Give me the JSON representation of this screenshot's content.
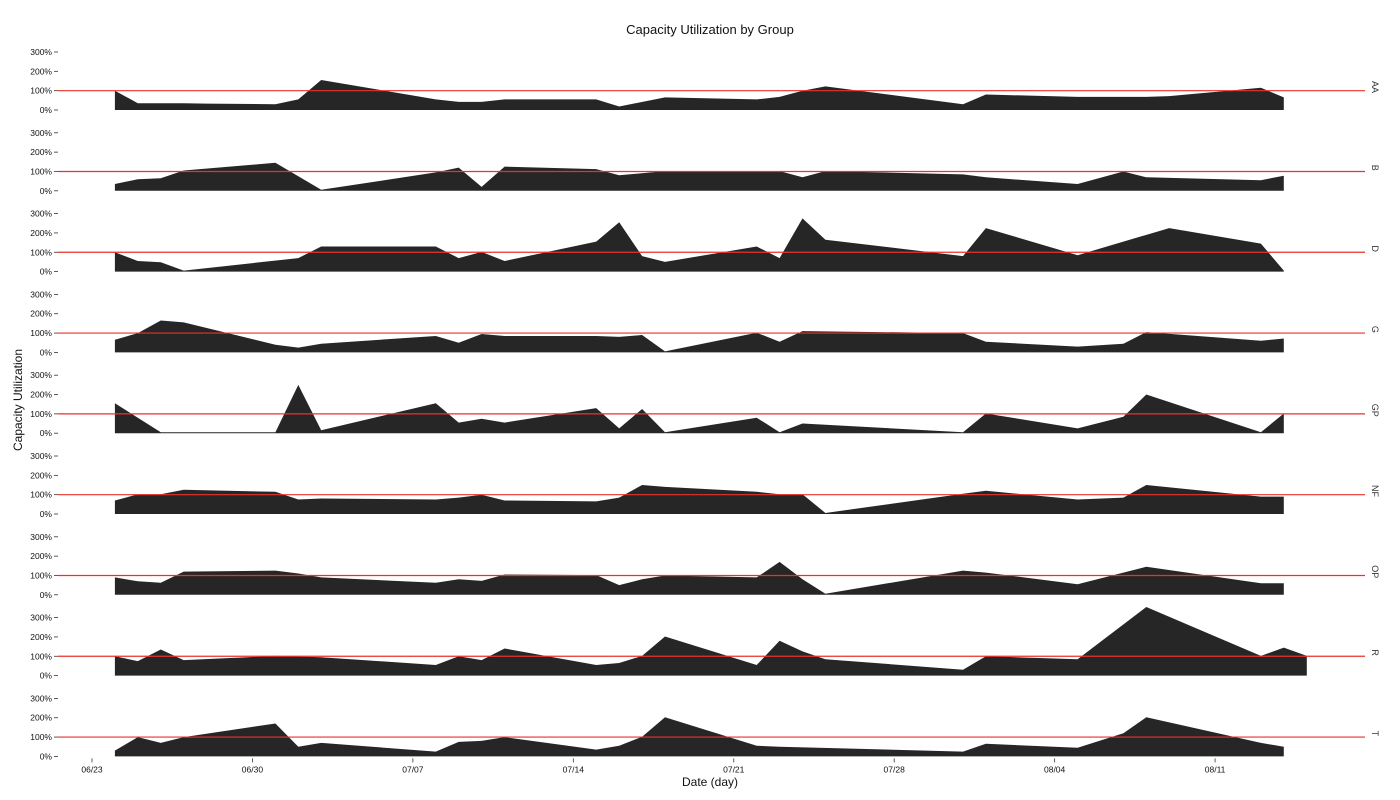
{
  "chart_data": {
    "type": "area",
    "title": "Capacity Utilization by Group",
    "xlabel": "Date (day)",
    "ylabel": "Capacity Utilization",
    "ylim": [
      0,
      3
    ],
    "yticks": [
      "0%",
      "100%",
      "200%",
      "300%"
    ],
    "xticks": [
      "06/23",
      "06/30",
      "07/07",
      "07/14",
      "07/21",
      "07/28",
      "08/04",
      "08/11"
    ],
    "reference_line": 1.0,
    "reference_color": "#e8332b",
    "fill_color": "#262626",
    "grid": false,
    "series": [
      {
        "name": "AA",
        "points": [
          [
            "06/24",
            1.0
          ],
          [
            "06/25",
            0.35
          ],
          [
            "06/26",
            0.35
          ],
          [
            "06/27",
            0.35
          ],
          [
            "06/28",
            0.33
          ],
          [
            "07/01",
            0.3
          ],
          [
            "07/02",
            0.55
          ],
          [
            "07/03",
            1.55
          ],
          [
            "07/08",
            0.55
          ],
          [
            "07/09",
            0.42
          ],
          [
            "07/10",
            0.42
          ],
          [
            "07/11",
            0.55
          ],
          [
            "07/15",
            0.55
          ],
          [
            "07/16",
            0.18
          ],
          [
            "07/18",
            0.65
          ],
          [
            "07/22",
            0.55
          ],
          [
            "07/23",
            0.68
          ],
          [
            "07/24",
            1.0
          ],
          [
            "07/25",
            1.22
          ],
          [
            "07/31",
            0.3
          ],
          [
            "08/01",
            0.8
          ],
          [
            "08/05",
            0.68
          ],
          [
            "08/08",
            0.68
          ],
          [
            "08/09",
            0.72
          ],
          [
            "08/13",
            1.15
          ],
          [
            "08/14",
            0.65
          ]
        ]
      },
      {
        "name": "B",
        "points": [
          [
            "06/24",
            0.35
          ],
          [
            "06/25",
            0.6
          ],
          [
            "06/26",
            0.65
          ],
          [
            "06/27",
            1.05
          ],
          [
            "07/01",
            1.45
          ],
          [
            "07/03",
            0.05
          ],
          [
            "07/08",
            0.95
          ],
          [
            "07/09",
            1.2
          ],
          [
            "07/10",
            0.2
          ],
          [
            "07/11",
            1.25
          ],
          [
            "07/15",
            1.12
          ],
          [
            "07/16",
            0.8
          ],
          [
            "07/18",
            1.02
          ],
          [
            "07/22",
            1.0
          ],
          [
            "07/23",
            1.02
          ],
          [
            "07/24",
            0.7
          ],
          [
            "07/25",
            1.02
          ],
          [
            "07/31",
            0.85
          ],
          [
            "08/01",
            0.7
          ],
          [
            "08/05",
            0.35
          ],
          [
            "08/07",
            1.0
          ],
          [
            "08/08",
            0.7
          ],
          [
            "08/13",
            0.55
          ],
          [
            "08/14",
            0.78
          ]
        ]
      },
      {
        "name": "D",
        "points": [
          [
            "06/24",
            1.0
          ],
          [
            "06/25",
            0.55
          ],
          [
            "06/26",
            0.48
          ],
          [
            "06/27",
            0.05
          ],
          [
            "07/02",
            0.7
          ],
          [
            "07/03",
            1.3
          ],
          [
            "07/08",
            1.3
          ],
          [
            "07/09",
            0.7
          ],
          [
            "07/10",
            1.02
          ],
          [
            "07/11",
            0.55
          ],
          [
            "07/15",
            1.55
          ],
          [
            "07/16",
            2.55
          ],
          [
            "07/17",
            0.8
          ],
          [
            "07/18",
            0.5
          ],
          [
            "07/22",
            1.3
          ],
          [
            "07/23",
            0.7
          ],
          [
            "07/24",
            2.75
          ],
          [
            "07/25",
            1.65
          ],
          [
            "07/31",
            0.8
          ],
          [
            "08/01",
            2.25
          ],
          [
            "08/05",
            0.85
          ],
          [
            "08/09",
            2.25
          ],
          [
            "08/13",
            1.45
          ],
          [
            "08/14",
            0.05
          ]
        ]
      },
      {
        "name": "G",
        "points": [
          [
            "06/24",
            0.65
          ],
          [
            "06/25",
            1.0
          ],
          [
            "06/26",
            1.65
          ],
          [
            "06/27",
            1.55
          ],
          [
            "07/01",
            0.4
          ],
          [
            "07/02",
            0.25
          ],
          [
            "07/03",
            0.45
          ],
          [
            "07/08",
            0.85
          ],
          [
            "07/09",
            0.5
          ],
          [
            "07/10",
            0.95
          ],
          [
            "07/11",
            0.85
          ],
          [
            "07/15",
            0.85
          ],
          [
            "07/16",
            0.8
          ],
          [
            "07/17",
            0.9
          ],
          [
            "07/18",
            0.05
          ],
          [
            "07/22",
            1.02
          ],
          [
            "07/23",
            0.55
          ],
          [
            "07/24",
            1.1
          ],
          [
            "07/31",
            1.0
          ],
          [
            "08/01",
            0.55
          ],
          [
            "08/05",
            0.3
          ],
          [
            "08/07",
            0.45
          ],
          [
            "08/08",
            1.05
          ],
          [
            "08/13",
            0.6
          ],
          [
            "08/14",
            0.72
          ]
        ]
      },
      {
        "name": "GP",
        "points": [
          [
            "06/24",
            1.55
          ],
          [
            "06/25",
            0.8
          ],
          [
            "06/26",
            0.05
          ],
          [
            "07/01",
            0.05
          ],
          [
            "07/02",
            2.5
          ],
          [
            "07/03",
            0.15
          ],
          [
            "07/08",
            1.55
          ],
          [
            "07/09",
            0.55
          ],
          [
            "07/10",
            0.75
          ],
          [
            "07/11",
            0.55
          ],
          [
            "07/15",
            1.3
          ],
          [
            "07/16",
            0.25
          ],
          [
            "07/17",
            1.25
          ],
          [
            "07/18",
            0.05
          ],
          [
            "07/22",
            0.8
          ],
          [
            "07/23",
            0.05
          ],
          [
            "07/24",
            0.5
          ],
          [
            "07/31",
            0.05
          ],
          [
            "08/01",
            1.02
          ],
          [
            "08/05",
            0.25
          ],
          [
            "08/07",
            0.85
          ],
          [
            "08/08",
            2.0
          ],
          [
            "08/13",
            0.05
          ],
          [
            "08/14",
            1.02
          ]
        ]
      },
      {
        "name": "NF",
        "points": [
          [
            "06/24",
            0.7
          ],
          [
            "06/25",
            1.02
          ],
          [
            "06/26",
            1.02
          ],
          [
            "06/27",
            1.25
          ],
          [
            "07/01",
            1.15
          ],
          [
            "07/02",
            0.75
          ],
          [
            "07/03",
            0.8
          ],
          [
            "07/08",
            0.75
          ],
          [
            "07/09",
            0.85
          ],
          [
            "07/10",
            1.0
          ],
          [
            "07/11",
            0.7
          ],
          [
            "07/15",
            0.65
          ],
          [
            "07/16",
            0.85
          ],
          [
            "07/17",
            1.5
          ],
          [
            "07/18",
            1.4
          ],
          [
            "07/22",
            1.15
          ],
          [
            "07/23",
            1.02
          ],
          [
            "07/24",
            1.02
          ],
          [
            "07/25",
            0.05
          ],
          [
            "07/31",
            1.05
          ],
          [
            "08/01",
            1.2
          ],
          [
            "08/05",
            0.75
          ],
          [
            "08/07",
            0.85
          ],
          [
            "08/08",
            1.5
          ],
          [
            "08/13",
            0.9
          ],
          [
            "08/14",
            0.9
          ]
        ]
      },
      {
        "name": "OP",
        "points": [
          [
            "06/24",
            0.9
          ],
          [
            "06/25",
            0.7
          ],
          [
            "06/26",
            0.62
          ],
          [
            "06/27",
            1.2
          ],
          [
            "07/01",
            1.25
          ],
          [
            "07/02",
            1.1
          ],
          [
            "07/03",
            0.9
          ],
          [
            "07/08",
            0.62
          ],
          [
            "07/09",
            0.8
          ],
          [
            "07/10",
            0.72
          ],
          [
            "07/11",
            1.05
          ],
          [
            "07/15",
            1.02
          ],
          [
            "07/16",
            0.5
          ],
          [
            "07/17",
            0.8
          ],
          [
            "07/18",
            1.0
          ],
          [
            "07/22",
            0.9
          ],
          [
            "07/23",
            1.7
          ],
          [
            "07/24",
            0.8
          ],
          [
            "07/25",
            0.05
          ],
          [
            "07/31",
            1.25
          ],
          [
            "08/01",
            1.15
          ],
          [
            "08/05",
            0.55
          ],
          [
            "08/08",
            1.45
          ],
          [
            "08/13",
            0.6
          ],
          [
            "08/14",
            0.6
          ]
        ]
      },
      {
        "name": "R",
        "points": [
          [
            "06/24",
            1.0
          ],
          [
            "06/25",
            0.75
          ],
          [
            "06/26",
            1.35
          ],
          [
            "06/27",
            0.8
          ],
          [
            "07/01",
            1.02
          ],
          [
            "07/03",
            0.95
          ],
          [
            "07/08",
            0.55
          ],
          [
            "07/09",
            1.0
          ],
          [
            "07/10",
            0.8
          ],
          [
            "07/11",
            1.4
          ],
          [
            "07/15",
            0.55
          ],
          [
            "07/16",
            0.65
          ],
          [
            "07/17",
            1.02
          ],
          [
            "07/18",
            2.02
          ],
          [
            "07/22",
            0.55
          ],
          [
            "07/23",
            1.8
          ],
          [
            "07/24",
            1.25
          ],
          [
            "07/25",
            0.85
          ],
          [
            "07/31",
            0.3
          ],
          [
            "08/01",
            1.0
          ],
          [
            "08/05",
            0.85
          ],
          [
            "08/08",
            3.55
          ],
          [
            "08/13",
            1.02
          ],
          [
            "08/14",
            1.45
          ],
          [
            "08/15",
            1.02
          ]
        ]
      },
      {
        "name": "T",
        "points": [
          [
            "06/24",
            0.3
          ],
          [
            "06/25",
            1.0
          ],
          [
            "06/26",
            0.7
          ],
          [
            "06/27",
            1.0
          ],
          [
            "07/01",
            1.7
          ],
          [
            "07/02",
            0.5
          ],
          [
            "07/03",
            0.7
          ],
          [
            "07/08",
            0.25
          ],
          [
            "07/09",
            0.75
          ],
          [
            "07/10",
            0.8
          ],
          [
            "07/11",
            1.0
          ],
          [
            "07/15",
            0.35
          ],
          [
            "07/16",
            0.55
          ],
          [
            "07/17",
            1.02
          ],
          [
            "07/18",
            2.02
          ],
          [
            "07/22",
            0.55
          ],
          [
            "07/23",
            0.5
          ],
          [
            "07/31",
            0.25
          ],
          [
            "08/01",
            0.65
          ],
          [
            "08/05",
            0.45
          ],
          [
            "08/07",
            1.2
          ],
          [
            "08/08",
            2.02
          ],
          [
            "08/13",
            0.7
          ],
          [
            "08/14",
            0.5
          ]
        ]
      }
    ]
  }
}
